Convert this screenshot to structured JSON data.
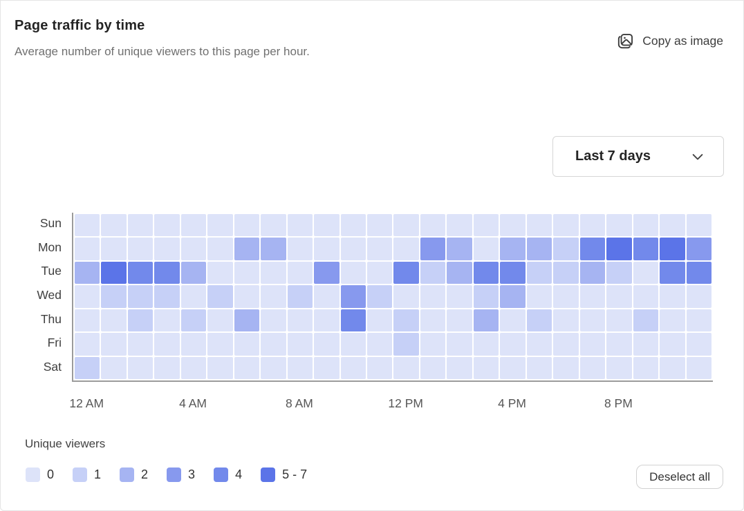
{
  "header": {
    "title": "Page traffic by time",
    "subtitle": "Average number of unique viewers to this page per hour.",
    "copy_button_label": "Copy as image"
  },
  "controls": {
    "range_dropdown_value": "Last 7 days"
  },
  "chart_data": {
    "type": "heatmap",
    "title": "Page traffic by time",
    "rows": [
      "Sun",
      "Mon",
      "Tue",
      "Wed",
      "Thu",
      "Fri",
      "Sat"
    ],
    "columns_per_row": 24,
    "x_tick_labels": [
      "12 AM",
      "4 AM",
      "8 AM",
      "12 PM",
      "4 PM",
      "8 PM"
    ],
    "x_tick_positions": [
      0,
      4,
      8,
      12,
      16,
      20
    ],
    "value_unit": "unique viewers per hour",
    "level_colors": [
      "#dde3f9",
      "#c6d0f7",
      "#a6b4f2",
      "#8799ee",
      "#7289eb",
      "#5b74e8"
    ],
    "levels": [
      [
        0,
        0,
        0,
        0,
        0,
        0,
        0,
        0,
        0,
        0,
        0,
        0,
        0,
        0,
        0,
        0,
        0,
        0,
        0,
        0,
        0,
        0,
        0,
        0
      ],
      [
        0,
        0,
        0,
        0,
        0,
        0,
        2,
        2,
        0,
        0,
        0,
        0,
        0,
        3,
        2,
        0,
        2,
        2,
        1,
        4,
        5,
        4,
        5,
        3
      ],
      [
        2,
        5,
        4,
        4,
        2,
        0,
        0,
        0,
        0,
        3,
        0,
        0,
        4,
        1,
        2,
        4,
        4,
        1,
        1,
        2,
        1,
        0,
        4,
        4
      ],
      [
        0,
        1,
        1,
        1,
        0,
        1,
        0,
        0,
        1,
        0,
        3,
        1,
        0,
        0,
        0,
        1,
        2,
        0,
        0,
        0,
        0,
        0,
        0,
        0
      ],
      [
        0,
        0,
        1,
        0,
        1,
        0,
        2,
        0,
        0,
        0,
        4,
        0,
        1,
        0,
        0,
        2,
        0,
        1,
        0,
        0,
        0,
        1,
        0,
        0
      ],
      [
        0,
        0,
        0,
        0,
        0,
        0,
        0,
        0,
        0,
        0,
        0,
        0,
        1,
        0,
        0,
        0,
        0,
        0,
        0,
        0,
        0,
        0,
        0,
        0
      ],
      [
        1,
        0,
        0,
        0,
        0,
        0,
        0,
        0,
        0,
        0,
        0,
        0,
        0,
        0,
        0,
        0,
        0,
        0,
        0,
        0,
        0,
        0,
        0,
        0
      ]
    ]
  },
  "legend": {
    "title": "Unique viewers",
    "items": [
      {
        "label": "0",
        "color": "#dde3f9"
      },
      {
        "label": "1",
        "color": "#c6d0f7"
      },
      {
        "label": "2",
        "color": "#a6b4f2"
      },
      {
        "label": "3",
        "color": "#8799ee"
      },
      {
        "label": "4",
        "color": "#7289eb"
      },
      {
        "label": "5 - 7",
        "color": "#5b74e8"
      }
    ]
  },
  "footer": {
    "deselect_button_label": "Deselect all"
  }
}
